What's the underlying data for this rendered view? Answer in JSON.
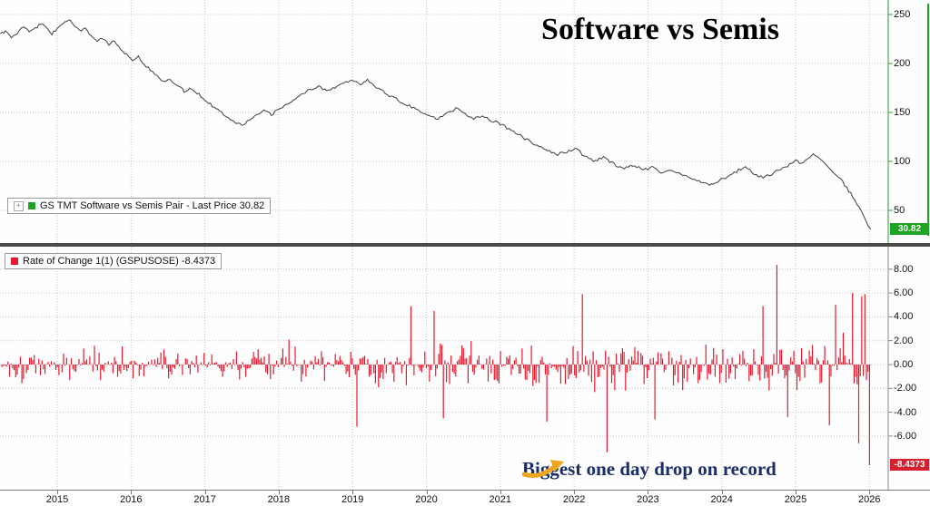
{
  "title": "Software vs Semis",
  "annotation": {
    "text": "Biggest one day drop on record",
    "arrow_color": "#f0a61c"
  },
  "x_axis": {
    "labels": [
      "2015",
      "2016",
      "2017",
      "2018",
      "2019",
      "2020",
      "2021",
      "2022",
      "2023",
      "2024",
      "2025",
      "2026"
    ]
  },
  "panels": {
    "price": {
      "legend": "GS TMT Software vs Semis Pair - Last Price 30.82",
      "badge": "30.82",
      "axis_ticks": [
        "250",
        "200",
        "150",
        "100",
        "50"
      ],
      "series_color": "#3f4034",
      "badge_color": "#1fa324",
      "axis_color": "#23a228"
    },
    "roc": {
      "legend": "Rate of Change 1(1) (GSPUSOSE) -8.4373",
      "badge": "-8.4373",
      "axis_ticks": [
        "8.00",
        "6.00",
        "4.00",
        "2.00",
        "0.00",
        "-2.00",
        "-4.00",
        "-6.00"
      ],
      "series_color": "#e6192e",
      "badge_color": "#d42031",
      "axis_color": "#8a8a8a"
    }
  },
  "chart_data": [
    {
      "type": "line",
      "name": "GS TMT Software vs Semis Pair - Last Price",
      "last_price": 30.82,
      "x_range": [
        2014.2,
        2026.05
      ],
      "ylim": [
        20,
        260
      ],
      "yticks": [
        250,
        200,
        150,
        100,
        50
      ],
      "points": [
        [
          2014.23,
          229
        ],
        [
          2014.3,
          234
        ],
        [
          2014.38,
          226
        ],
        [
          2014.46,
          231
        ],
        [
          2014.55,
          238
        ],
        [
          2014.62,
          232
        ],
        [
          2014.7,
          236
        ],
        [
          2014.78,
          241
        ],
        [
          2014.85,
          236
        ],
        [
          2014.93,
          230
        ],
        [
          2015.0,
          236
        ],
        [
          2015.08,
          242
        ],
        [
          2015.15,
          245
        ],
        [
          2015.22,
          239
        ],
        [
          2015.3,
          233
        ],
        [
          2015.38,
          236
        ],
        [
          2015.46,
          229
        ],
        [
          2015.54,
          222
        ],
        [
          2015.62,
          226
        ],
        [
          2015.7,
          219
        ],
        [
          2015.78,
          223
        ],
        [
          2015.86,
          215
        ],
        [
          2015.94,
          209
        ],
        [
          2016.02,
          204
        ],
        [
          2016.1,
          208
        ],
        [
          2016.18,
          199
        ],
        [
          2016.26,
          193
        ],
        [
          2016.35,
          188
        ],
        [
          2016.44,
          182
        ],
        [
          2016.53,
          184
        ],
        [
          2016.62,
          177
        ],
        [
          2016.72,
          172
        ],
        [
          2016.82,
          174
        ],
        [
          2016.92,
          169
        ],
        [
          2017.0,
          163
        ],
        [
          2017.1,
          157
        ],
        [
          2017.2,
          151
        ],
        [
          2017.3,
          146
        ],
        [
          2017.4,
          141
        ],
        [
          2017.5,
          137
        ],
        [
          2017.6,
          142
        ],
        [
          2017.7,
          147
        ],
        [
          2017.8,
          151
        ],
        [
          2017.9,
          148
        ],
        [
          2018.0,
          153
        ],
        [
          2018.1,
          158
        ],
        [
          2018.2,
          163
        ],
        [
          2018.3,
          168
        ],
        [
          2018.42,
          173
        ],
        [
          2018.54,
          177
        ],
        [
          2018.65,
          172
        ],
        [
          2018.76,
          176
        ],
        [
          2018.88,
          180
        ],
        [
          2019.0,
          184
        ],
        [
          2019.1,
          179
        ],
        [
          2019.2,
          183
        ],
        [
          2019.32,
          176
        ],
        [
          2019.44,
          170
        ],
        [
          2019.56,
          165
        ],
        [
          2019.68,
          160
        ],
        [
          2019.8,
          156
        ],
        [
          2019.92,
          151
        ],
        [
          2020.04,
          147
        ],
        [
          2020.16,
          143
        ],
        [
          2020.28,
          150
        ],
        [
          2020.4,
          154
        ],
        [
          2020.52,
          149
        ],
        [
          2020.64,
          144
        ],
        [
          2020.76,
          147
        ],
        [
          2020.88,
          142
        ],
        [
          2021.0,
          138
        ],
        [
          2021.12,
          133
        ],
        [
          2021.24,
          128
        ],
        [
          2021.36,
          122
        ],
        [
          2021.5,
          116
        ],
        [
          2021.64,
          111
        ],
        [
          2021.78,
          107
        ],
        [
          2021.9,
          110
        ],
        [
          2022.02,
          113
        ],
        [
          2022.14,
          106
        ],
        [
          2022.26,
          100
        ],
        [
          2022.4,
          104
        ],
        [
          2022.54,
          97
        ],
        [
          2022.68,
          93
        ],
        [
          2022.82,
          96
        ],
        [
          2022.94,
          91
        ],
        [
          2023.06,
          94
        ],
        [
          2023.18,
          89
        ],
        [
          2023.3,
          92
        ],
        [
          2023.44,
          87
        ],
        [
          2023.58,
          83
        ],
        [
          2023.72,
          79
        ],
        [
          2023.86,
          76
        ],
        [
          2023.96,
          80
        ],
        [
          2024.08,
          85
        ],
        [
          2024.2,
          90
        ],
        [
          2024.32,
          94
        ],
        [
          2024.44,
          88
        ],
        [
          2024.56,
          83
        ],
        [
          2024.68,
          87
        ],
        [
          2024.8,
          92
        ],
        [
          2024.92,
          97
        ],
        [
          2025.0,
          101
        ],
        [
          2025.08,
          97
        ],
        [
          2025.16,
          103
        ],
        [
          2025.24,
          108
        ],
        [
          2025.32,
          104
        ],
        [
          2025.4,
          98
        ],
        [
          2025.48,
          92
        ],
        [
          2025.56,
          86
        ],
        [
          2025.64,
          79
        ],
        [
          2025.72,
          70
        ],
        [
          2025.8,
          61
        ],
        [
          2025.86,
          53
        ],
        [
          2025.9,
          47
        ],
        [
          2025.94,
          41
        ],
        [
          2025.98,
          35
        ],
        [
          2026.02,
          30.82
        ]
      ]
    },
    {
      "type": "bar",
      "name": "Rate of Change 1(1) (GSPUSOSE)",
      "last_value": -8.4373,
      "ylim": [
        -9.5,
        9.5
      ],
      "yticks": [
        8,
        6,
        4,
        2,
        0,
        -2,
        -4,
        -6
      ],
      "noise": {
        "seed": 1337,
        "volatility": [
          [
            2014.25,
            0.8
          ],
          [
            2015.5,
            0.75
          ],
          [
            2016.5,
            0.7
          ],
          [
            2017.5,
            0.68
          ],
          [
            2018.4,
            0.85
          ],
          [
            2019.2,
            0.8
          ],
          [
            2019.9,
            0.95
          ],
          [
            2020.35,
            1.1
          ],
          [
            2021.0,
            0.85
          ],
          [
            2021.9,
            1.0
          ],
          [
            2022.5,
            1.25
          ],
          [
            2023.3,
            0.95
          ],
          [
            2024.0,
            1.1
          ],
          [
            2024.8,
            1.3
          ],
          [
            2025.5,
            1.45
          ],
          [
            2026.05,
            1.55
          ]
        ]
      },
      "spikes": [
        [
          2019.05,
          -5.2
        ],
        [
          2019.8,
          4.9
        ],
        [
          2020.1,
          4.5
        ],
        [
          2020.22,
          -4.5
        ],
        [
          2021.64,
          -4.8
        ],
        [
          2022.12,
          5.9
        ],
        [
          2022.45,
          -7.35
        ],
        [
          2023.1,
          -4.6
        ],
        [
          2024.56,
          4.9
        ],
        [
          2024.74,
          8.35
        ],
        [
          2024.9,
          -4.4
        ],
        [
          2025.45,
          -5.1
        ],
        [
          2025.55,
          5.0
        ],
        [
          2025.78,
          6.0
        ],
        [
          2025.85,
          -6.6
        ],
        [
          2025.9,
          5.7
        ],
        [
          2025.94,
          5.9
        ],
        [
          2026.0,
          -8.4373
        ]
      ]
    }
  ]
}
